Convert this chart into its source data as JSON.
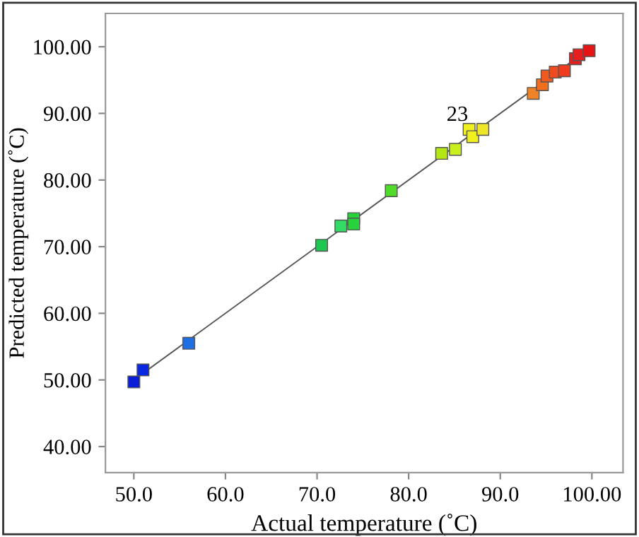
{
  "chart_data": {
    "type": "scatter",
    "xlabel": "Actual temperature (˚C)",
    "ylabel": "Predicted temperature (˚C)",
    "grid": false,
    "xlim": [
      46.9,
      103.4
    ],
    "ylim": [
      36.1,
      105
    ],
    "xticks": [
      {
        "value": 50,
        "label": "50.0"
      },
      {
        "value": 60,
        "label": "60.0"
      },
      {
        "value": 70,
        "label": "70.0"
      },
      {
        "value": 80,
        "label": "80.0"
      },
      {
        "value": 90,
        "label": "90.0"
      },
      {
        "value": 100,
        "label": "100.00"
      }
    ],
    "yticks": [
      {
        "value": 40,
        "label": "40.00"
      },
      {
        "value": 50,
        "label": "50.00"
      },
      {
        "value": 60,
        "label": "60.00"
      },
      {
        "value": 70,
        "label": "70.00"
      },
      {
        "value": 80,
        "label": "80.00"
      },
      {
        "value": 90,
        "label": "90.00"
      },
      {
        "value": 100,
        "label": "100.00"
      }
    ],
    "annotations": [
      {
        "text": "23",
        "x": 86.6,
        "y": 87.6
      }
    ],
    "series": [
      {
        "marker": "square",
        "x": [
          50.0,
          51.0,
          56.0,
          70.5,
          72.6,
          74.0,
          74.0,
          78.1,
          83.6,
          85.1,
          86.6,
          87.0,
          88.1,
          93.6,
          94.6,
          95.1,
          96.0,
          97.0,
          98.2,
          98.6,
          99.7
        ],
        "values": [
          49.7,
          51.5,
          55.5,
          70.2,
          73.1,
          74.2,
          73.4,
          78.4,
          84.0,
          84.6,
          87.6,
          86.5,
          87.6,
          93.0,
          94.3,
          95.6,
          96.2,
          96.4,
          98.2,
          98.8,
          99.4
        ],
        "colors": [
          "#0a1ed8",
          "#0a28e0",
          "#1e6ee6",
          "#1ec850",
          "#32dc64",
          "#28d23c",
          "#28d23c",
          "#50dc28",
          "#b4e614",
          "#c8f01e",
          "#f0f01e",
          "#f0f01e",
          "#f0e628",
          "#f08228",
          "#f06e1e",
          "#f05a1e",
          "#f04b1e",
          "#f03c1e",
          "#e61e1e",
          "#e61e1e",
          "#e61414"
        ]
      },
      {
        "type": "line",
        "color": "#555555",
        "x": [
          51.0,
          99.7
        ],
        "values": [
          51.0,
          99.7
        ]
      }
    ]
  }
}
